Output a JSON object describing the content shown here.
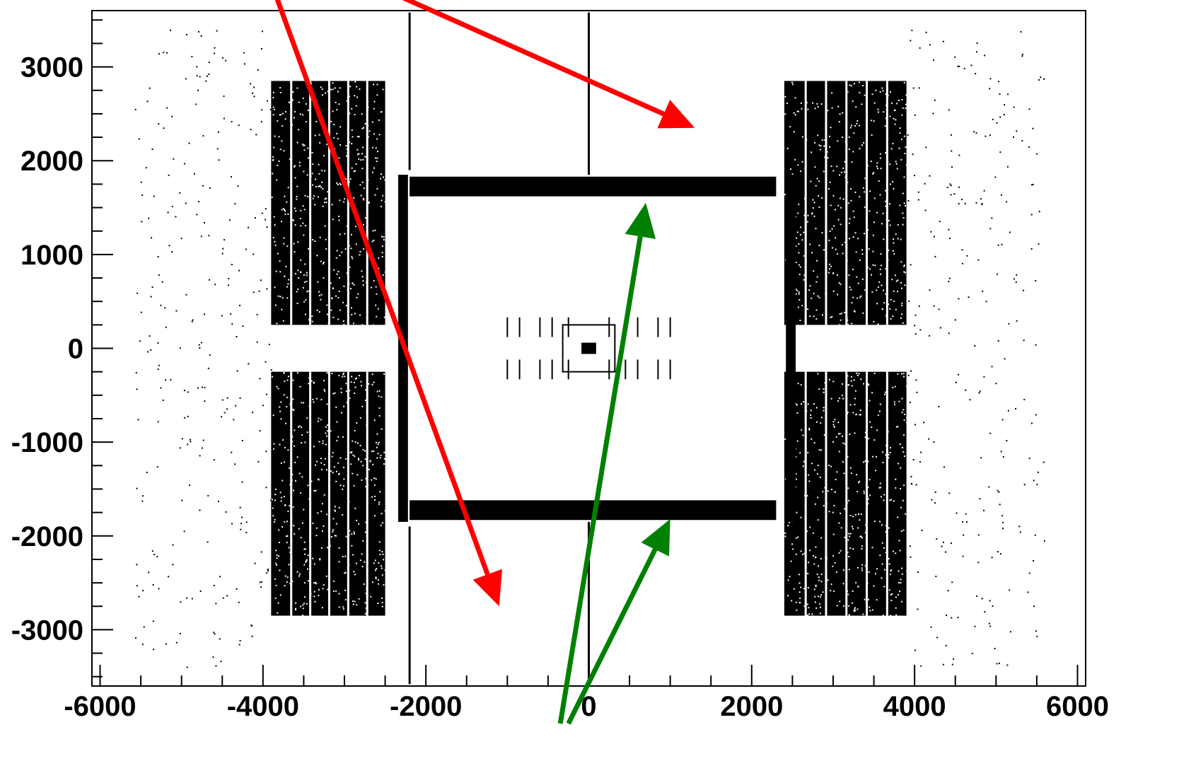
{
  "chart_data": {
    "type": "scatter",
    "title": "",
    "xlabel": "",
    "ylabel": "",
    "xlim": [
      -6100,
      6100
    ],
    "ylim": [
      -3600,
      3600
    ],
    "grid": false,
    "x_ticks": [
      "-6000",
      "-4000",
      "-2000",
      "0",
      "2000",
      "4000",
      "6000"
    ],
    "y_ticks": [
      "3000",
      "2000",
      "1000",
      "0",
      "-1000",
      "-2000",
      "-3000"
    ],
    "x_tick_values": [
      -6000,
      -4000,
      -2000,
      0,
      2000,
      4000,
      6000
    ],
    "y_tick_values": [
      3000,
      2000,
      1000,
      0,
      -1000,
      -2000,
      -3000
    ],
    "dense_regions": [
      {
        "x": [
          -3900,
          -2500
        ],
        "y": [
          250,
          2850
        ]
      },
      {
        "x": [
          -3900,
          -2500
        ],
        "y": [
          -2850,
          -250
        ]
      },
      {
        "x": [
          2400,
          3900
        ],
        "y": [
          250,
          2850
        ]
      },
      {
        "x": [
          2400,
          3900
        ],
        "y": [
          -2850,
          -250
        ]
      }
    ],
    "solid_bars": [
      {
        "x": [
          -2340,
          -2220
        ],
        "y": [
          -1850,
          1850
        ]
      },
      {
        "x": [
          2420,
          2540
        ],
        "y": [
          -1850,
          1850
        ]
      },
      {
        "x": [
          -2200,
          2300
        ],
        "y": [
          1620,
          1830
        ]
      },
      {
        "x": [
          -2200,
          2300
        ],
        "y": [
          -1830,
          -1620
        ]
      }
    ],
    "thin_lines": [
      {
        "x": [
          -2200,
          -2200
        ],
        "y": [
          1900,
          3580
        ]
      },
      {
        "x": [
          -2200,
          -2200
        ],
        "y": [
          -3580,
          -1900
        ]
      },
      {
        "x": [
          0,
          0
        ],
        "y": [
          1850,
          3580
        ]
      },
      {
        "x": [
          0,
          0
        ],
        "y": [
          -3580,
          -1850
        ]
      }
    ],
    "arrows": [
      {
        "color": "#ff0000",
        "from": [
          -3900,
          3900
        ],
        "to": [
          -1100,
          -2750
        ]
      },
      {
        "color": "#ff0000",
        "from": [
          -2700,
          3900
        ],
        "to": [
          1300,
          2350
        ]
      },
      {
        "color": "#008000",
        "from": [
          -350,
          -4000
        ],
        "to": [
          700,
          1550
        ]
      },
      {
        "color": "#008000",
        "from": [
          -250,
          -4000
        ],
        "to": [
          1000,
          -1820
        ]
      }
    ],
    "colors": {
      "points": "#000000",
      "red_arrow": "#ff0000",
      "green_arrow": "#008000"
    }
  }
}
